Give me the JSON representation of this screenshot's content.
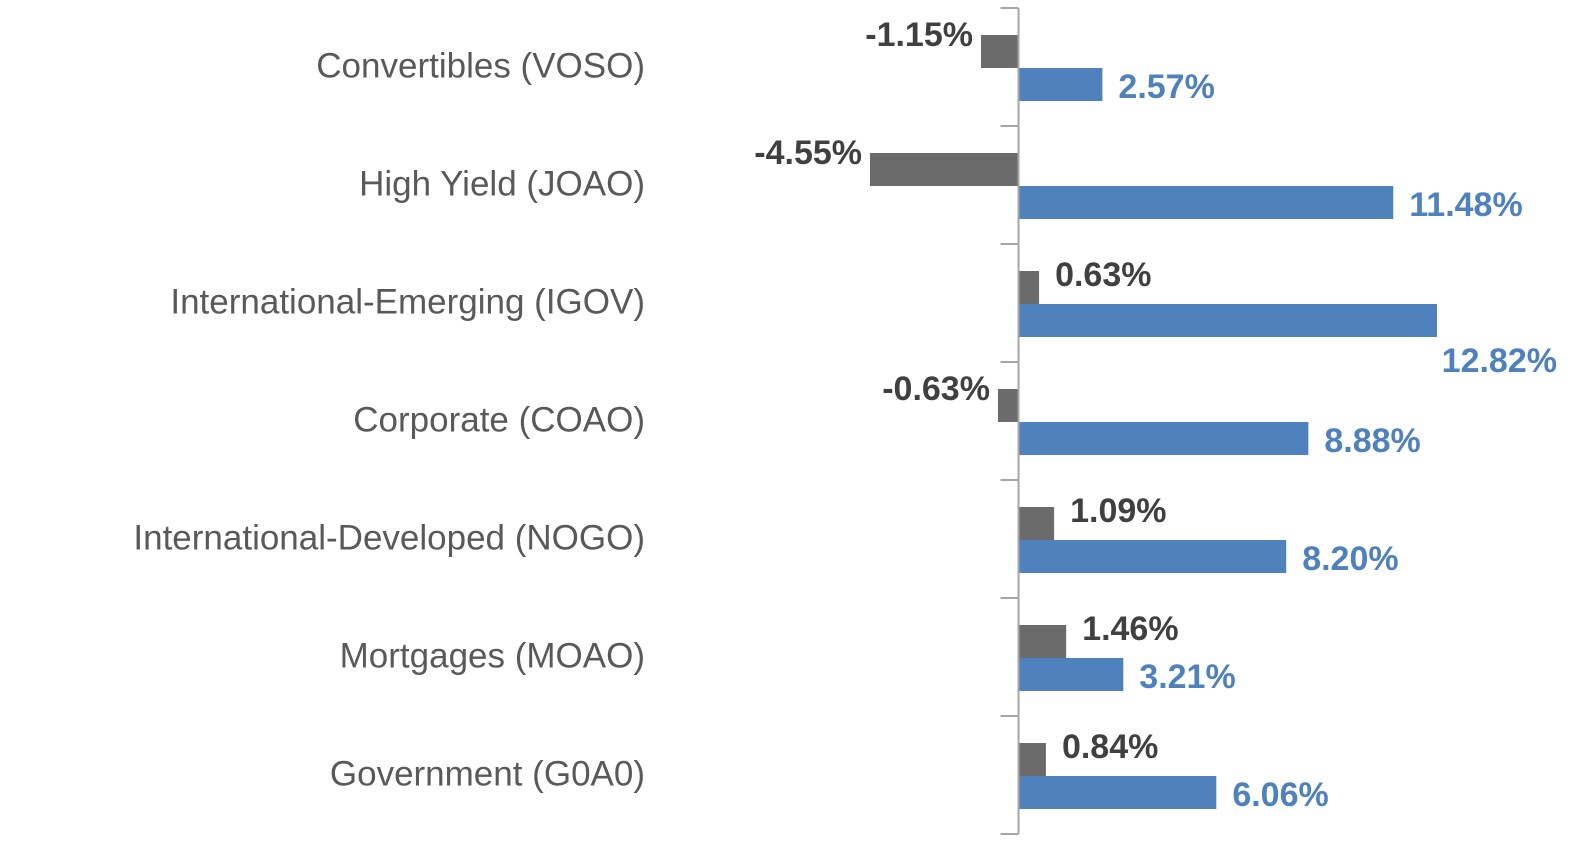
{
  "chart_data": {
    "type": "bar",
    "orientation": "horizontal",
    "categories": [
      "Convertibles (VOSO)",
      "High Yield (JOAO)",
      "International-Emerging (IGOV)",
      "Corporate (COAO)",
      "International-Developed (NOGO)",
      "Mortgages (MOAO)",
      "Government (G0A0)"
    ],
    "series": [
      {
        "color": "#6b6b6b",
        "label_color": "#404040",
        "values": [
          -1.15,
          -4.55,
          0.63,
          -0.63,
          1.09,
          1.46,
          0.84
        ],
        "value_labels": [
          "-1.15%",
          "-4.55%",
          "0.63%",
          "-0.63%",
          "1.09%",
          "1.46%",
          "0.84%"
        ]
      },
      {
        "color": "#4f81bd",
        "label_color": "#4f81bd",
        "values": [
          2.57,
          11.48,
          12.82,
          8.88,
          8.2,
          3.21,
          6.06
        ],
        "value_labels": [
          "2.57%",
          "11.48%",
          "12.82%",
          "8.88%",
          "8.20%",
          "3.21%",
          "6.06%"
        ]
      }
    ]
  }
}
